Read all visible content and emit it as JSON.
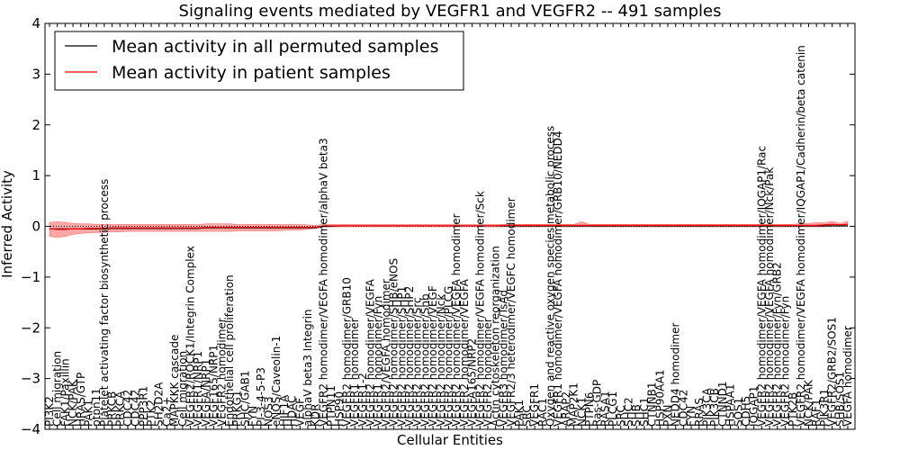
{
  "chart_data": {
    "type": "line",
    "title": "Signaling events mediated by VEGFR1 and VEGFR2 -- 491 samples",
    "xlabel": "Cellular Entities",
    "ylabel": "Inferred Activity",
    "ylim": [
      -4,
      4
    ],
    "yticks": [
      "4",
      "3",
      "2",
      "1",
      "0",
      "−1",
      "−2",
      "−3",
      "−4"
    ],
    "legend": {
      "position": "top-left",
      "entries": [
        {
          "label": "Mean activity in all permuted samples",
          "color": "#000000"
        },
        {
          "label": "Mean activity in patient samples",
          "color": "#ff0000"
        }
      ]
    },
    "categories": [
      "PI3K2",
      "Cell migration",
      "FAK1/Paxillin",
      "NCK/PAK",
      "HRAS/GTP",
      "PAK1",
      "ptpn11",
      "Platelet activating factor biosynthetic process",
      "PRKCB",
      "PRKCA",
      "CDC42",
      "CDC42",
      "PPP3R1",
      "PTK2",
      "SH2D2A",
      "Ca2+",
      "MAPKKK cascade",
      "Cell migration",
      "VEGFR2/ROCK1/Integrin Complex",
      "VEGFR1/NRP1",
      "VEGFA/NRP1",
      "VEGF165/NRP1",
      "VEGFR2 homodimer",
      "Endothelial cell proliferation",
      "PRKG1",
      "SHC/GAB1",
      "FYN",
      "PI-3-4-5-P3",
      "NOS3",
      "eNOS/Caveolin-1",
      "HIF1A",
      "HDAC",
      "VEGF",
      "alphaV beta3 Integrin",
      "KDR",
      "VEGFR2 homodimer/VEGFA homodimer/alphaV beta3",
      "PTPN11",
      "HSP90",
      "VEGFR2 homodimer/GRB10",
      "VEGFR1 homodimer",
      "VEGFR1-2",
      "VEGFR2 homodimer/VEGFA",
      "VEGFR1 homodimer/Fyn",
      "VEGFR2/VEGFA homodimer",
      "VEGFR2 homodimer/SHB/eNOS",
      "VEGFR2 homodimer/SHP1",
      "VEGFR2 homodimer/SHP2",
      "VEGFR2 homodimer/Src",
      "VEGFR2 homodimer/Shb",
      "VEGFR2 homodimer/VEGF",
      "VEGFR2 homodimer/Nck",
      "VEGFR2 homodimer/PLCG",
      "VEGFR2 homodimer/VEGFA homodimer",
      "VEGFR2 homodimer/VEGFA",
      "VEGFA165/NRP2",
      "VEGFR2 homodimer/VEGFA homodimer/Sck",
      "VEGFR2 homodimer",
      "Actin cytoskeleton reorganization",
      "VEGFR3 homodimer/TsAd",
      "VEGFR2/3 heterodimer/VEGFC homodimer",
      "PAK1",
      "SRC",
      "VEGFR1",
      "RAC1",
      "Oxygen and reactive oxygen species metabolic process",
      "VEGFR1 homodimer/VEGFA homodimer/GRB10/NEDD4",
      "ARAP2",
      "MAP2K1",
      "NCK1",
      "PTPN6",
      "Ras-GDP",
      "RASA1",
      "PLCG1",
      "SRC",
      "SHC2",
      "SHB",
      "SHC1",
      "CTNNB1",
      "HSP90AA1",
      "PXN",
      "NEDD4 homodimer",
      "CDC42",
      "FYN",
      "RRAS",
      "PIK3CA",
      "PIK3CB",
      "CTNND1",
      "HSPAA1",
      "SOS1",
      "CDH5",
      "IQGAP1",
      "VEGFR2 homodimer/VEGFA homodimer/IQGAP1/Rac",
      "VEGFR2 homodimer/VEGFA homodimer/Nck/Pak",
      "VEGFR2 homodimer/Fyn/GRB2",
      "VEGFR2 homodimer/Fyn",
      "PTK2B",
      "VEGFR2 homodimer/VEGFA homodimer/IQGAP1/Cadherin/beta catenin",
      "NCK/PAK",
      "RAF1",
      "PIK3R1",
      "VEGFR2/GRB2/SOS1",
      "SHB/SOS1",
      "VEGFA homodimer"
    ],
    "labels_display": [
      "PI3K2",
      "Cell migration",
      "FAK1/Paxillin",
      "NCK/PAK",
      "HRAS/GTP",
      "PAK1",
      "ptpn11",
      "Platelet activating factor biosynthetic process",
      "PRKCB",
      "PRKCA",
      "CDC42",
      "CDC42",
      "PPP3R1",
      "PTK2",
      "SH2D2A",
      "Ca2+",
      "MAPKKK cascade",
      "Cell migration",
      "VEGFR2/ROCK1/Integrin Complex",
      "VEGFR1/NRP1",
      "VEGFA/NRP1",
      "VEGF165/NRP1",
      "VEGFR2 homodimer",
      "Endothelial cell proliferation",
      "PRKG1",
      "SHC/GAB1",
      "FYN",
      "PI-3-4-5-P3",
      "NOS3",
      "eNOS/Caveolin-1",
      "HIF1A",
      "HDAC",
      "VEGF",
      "alphaV beta3 Integrin",
      "KDR",
      "VEGFR2 homodimer/VEGFA homodimer/alphaV beta3",
      "PTPN11",
      "HSP90",
      "VEGFR2 homodimer/GRB10",
      "VEGFR1 homodimer",
      "VEGFR1-2",
      "VEGFR2 homodimer/VEGFA",
      "VEGFR1 homodimer/Fyn",
      "VEGFR2/VEGFA homodimer",
      "VEGFR2 homodimer/SHB/eNOS",
      "VEGFR2 homodimer/SHP1",
      "VEGFR2 homodimer/SHP2",
      "VEGFR2 homodimer/Src",
      "VEGFR2 homodimer/Shb",
      "VEGFR2 homodimer/VEGF",
      "VEGFR2 homodimer/Nck",
      "VEGFR2 homodimer/PLCG",
      "VEGFR2 homodimer/VEGFA homodimer",
      "VEGFR2 homodimer/VEGFA",
      "VEGFA165/NRP2",
      "VEGFR2 homodimer/VEGFA homodimer/Sck",
      "VEGFR2 homodimer",
      "Actin cytoskeleton reorganization",
      "VEGFR3 homodimer/TsAd",
      "VEGFR2/3 heterodimer/VEGFC homodimer",
      "PAK1",
      "SRC",
      "VEGFR1",
      "RAC1",
      "Oxygen and reactive oxygen species metabolic process",
      "VEGFR1 homodimer/VEGFA homodimer/GRB10/NEDD4",
      "ARAP2",
      "MAP2K1",
      "NCK1",
      "PTPN6",
      "Ras-GDP",
      "RASA1",
      "PLCG1",
      "SRC",
      "SHC2",
      "SHB",
      "SHC1",
      "CTNNB1",
      "HSP90AA1",
      "PXN",
      "NEDD4 homodimer",
      "CDC42",
      "FYN",
      "RRAS",
      "PIK3CA",
      "PIK3CB",
      "CTNND1",
      "HSPAA1",
      "SOS1",
      "CDH5",
      "IQGAP1",
      "VEGFR2 homodimer/VEGFA homodimer/IQGAP1/Rac",
      "VEGFR2 homodimer/VEGFA homodimer/Nck/Pak",
      "VEGFR2 homodimer/Fyn/GRB2",
      "VEGFR2 homodimer/Fyn",
      "PTK2B",
      "VEGFR2 homodimer/VEGFA homodimer/IQGAP1/Cadherin/beta catenin",
      "NCK/PAK",
      "RAF1",
      "PIK3R1",
      "VEGFR2/GRB2/SOS1",
      "SHB/SOS1",
      "VEGFA homodimer"
    ],
    "series": [
      {
        "name": "Mean activity in all permuted samples",
        "color": "#000000",
        "values": [
          -0.05,
          -0.05,
          -0.05,
          -0.05,
          -0.05,
          -0.05,
          -0.05,
          -0.05,
          -0.04,
          -0.04,
          -0.04,
          -0.04,
          -0.04,
          -0.04,
          -0.04,
          -0.04,
          -0.04,
          -0.04,
          -0.04,
          -0.04,
          -0.03,
          -0.03,
          -0.03,
          -0.03,
          -0.03,
          -0.03,
          -0.03,
          -0.03,
          -0.03,
          -0.03,
          -0.03,
          -0.03,
          -0.03,
          -0.03,
          -0.03,
          0.0,
          0.0,
          0.01,
          0.01,
          0.01,
          0.01,
          0.01,
          0.01,
          0.01,
          0.01,
          0.01,
          0.01,
          0.01,
          0.01,
          0.01,
          0.01,
          0.01,
          0.01,
          0.01,
          0.01,
          0.01,
          0.01,
          0.01,
          0.01,
          0.01,
          0.01,
          0.01,
          0.01,
          0.01,
          0.01,
          0.01,
          0.01,
          0.01,
          0.01,
          0.01,
          0.01,
          0.01,
          0.01,
          0.01,
          0.01,
          0.01,
          0.01,
          0.01,
          0.01,
          0.01,
          0.01,
          0.01,
          0.01,
          0.01,
          0.01,
          0.01,
          0.01,
          0.01,
          0.01,
          0.01,
          0.01,
          0.01,
          0.01,
          0.01,
          0.01,
          0.01,
          0.01,
          0.01,
          0.01,
          0.01,
          0.01,
          0.01,
          0.01
        ]
      },
      {
        "name": "Mean activity in patient samples",
        "color": "#ff0000",
        "values": [
          -0.05,
          -0.06,
          -0.06,
          -0.05,
          -0.05,
          -0.04,
          -0.04,
          -0.04,
          -0.03,
          -0.03,
          -0.03,
          -0.03,
          -0.03,
          -0.03,
          -0.03,
          -0.03,
          -0.03,
          -0.03,
          -0.03,
          -0.03,
          -0.02,
          -0.02,
          -0.02,
          -0.02,
          -0.02,
          -0.02,
          -0.02,
          -0.02,
          -0.02,
          -0.02,
          -0.02,
          -0.02,
          -0.02,
          -0.02,
          -0.02,
          0.01,
          0.01,
          0.01,
          0.01,
          0.01,
          0.01,
          0.01,
          0.01,
          0.01,
          0.01,
          0.01,
          0.01,
          0.01,
          0.01,
          0.01,
          0.01,
          0.01,
          0.01,
          0.01,
          0.01,
          0.01,
          0.01,
          0.01,
          0.02,
          0.02,
          0.02,
          0.02,
          0.02,
          0.02,
          0.02,
          0.02,
          0.02,
          0.02,
          0.02,
          0.02,
          0.02,
          0.02,
          0.02,
          0.02,
          0.02,
          0.02,
          0.02,
          0.02,
          0.02,
          0.02,
          0.02,
          0.02,
          0.02,
          0.02,
          0.02,
          0.02,
          0.02,
          0.02,
          0.02,
          0.02,
          0.02,
          0.02,
          0.02,
          0.02,
          0.02,
          0.02,
          0.02,
          0.02,
          0.02,
          0.03,
          0.04,
          0.03,
          0.04
        ],
        "lower": [
          -0.2,
          -0.22,
          -0.2,
          -0.16,
          -0.14,
          -0.13,
          -0.12,
          -0.12,
          -0.11,
          -0.11,
          -0.1,
          -0.1,
          -0.1,
          -0.1,
          -0.1,
          -0.1,
          -0.1,
          -0.1,
          -0.1,
          -0.1,
          -0.1,
          -0.1,
          -0.1,
          -0.1,
          -0.09,
          -0.09,
          -0.09,
          -0.09,
          -0.09,
          -0.09,
          -0.08,
          -0.08,
          -0.08,
          -0.06,
          -0.04,
          -0.01,
          -0.01,
          -0.01,
          -0.01,
          -0.01,
          -0.01,
          -0.01,
          -0.01,
          -0.01,
          -0.01,
          -0.01,
          -0.01,
          -0.01,
          -0.01,
          -0.01,
          -0.01,
          -0.01,
          -0.01,
          -0.01,
          -0.01,
          -0.01,
          -0.01,
          -0.01,
          -0.01,
          -0.01,
          -0.01,
          -0.01,
          -0.01,
          -0.01,
          -0.01,
          -0.01,
          -0.01,
          -0.01,
          -0.01,
          -0.01,
          -0.01,
          -0.01,
          -0.01,
          -0.01,
          -0.01,
          -0.01,
          -0.01,
          -0.01,
          -0.01,
          -0.01,
          -0.01,
          -0.01,
          -0.01,
          -0.01,
          -0.01,
          -0.01,
          -0.01,
          -0.01,
          -0.01,
          -0.01,
          -0.01,
          -0.01,
          -0.01,
          -0.01,
          -0.01,
          -0.01,
          -0.01,
          -0.01,
          -0.01,
          -0.01,
          0.0,
          0.0,
          0.0
        ],
        "upper": [
          0.08,
          0.09,
          0.08,
          0.06,
          0.05,
          0.05,
          0.04,
          0.04,
          0.04,
          0.04,
          0.04,
          0.04,
          0.04,
          0.04,
          0.04,
          0.04,
          0.04,
          0.04,
          0.04,
          0.04,
          0.05,
          0.05,
          0.05,
          0.05,
          0.04,
          0.04,
          0.04,
          0.04,
          0.04,
          0.04,
          0.04,
          0.04,
          0.04,
          0.03,
          0.02,
          0.04,
          0.04,
          0.04,
          0.04,
          0.04,
          0.04,
          0.04,
          0.04,
          0.04,
          0.04,
          0.04,
          0.04,
          0.04,
          0.04,
          0.04,
          0.04,
          0.04,
          0.04,
          0.04,
          0.04,
          0.04,
          0.04,
          0.04,
          0.04,
          0.04,
          0.04,
          0.04,
          0.04,
          0.04,
          0.04,
          0.04,
          0.04,
          0.04,
          0.09,
          0.04,
          0.04,
          0.04,
          0.04,
          0.04,
          0.04,
          0.04,
          0.04,
          0.04,
          0.04,
          0.04,
          0.04,
          0.04,
          0.04,
          0.04,
          0.04,
          0.04,
          0.04,
          0.04,
          0.04,
          0.04,
          0.04,
          0.04,
          0.04,
          0.04,
          0.04,
          0.04,
          0.06,
          0.06,
          0.08,
          0.07,
          0.1,
          0.06,
          0.1
        ]
      }
    ]
  }
}
